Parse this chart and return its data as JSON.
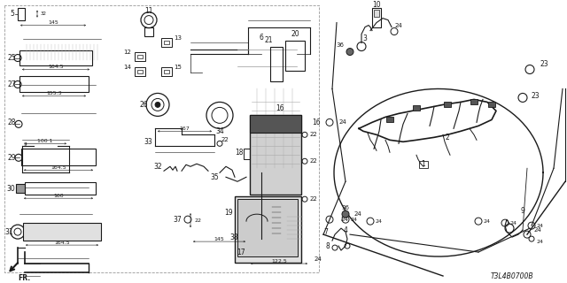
{
  "bg_color": "#ffffff",
  "dc": "#1a1a1a",
  "gray": "#888888",
  "lgray": "#cccccc",
  "code": "T3L4B0700B"
}
